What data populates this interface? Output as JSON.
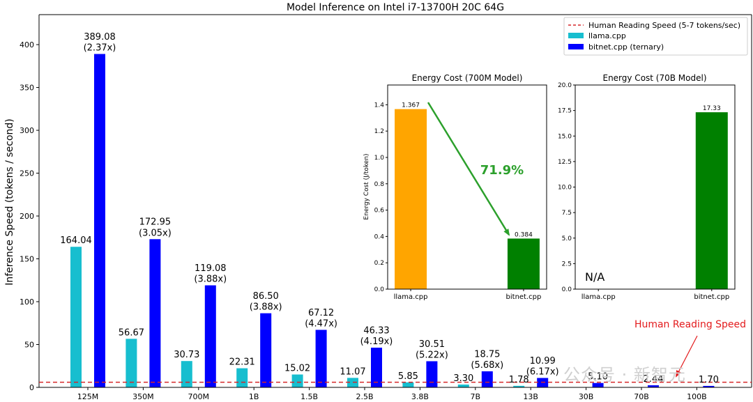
{
  "chart_data": [
    {
      "type": "bar",
      "title": "Model Inference on Intel i7-13700H 20C 64G",
      "xlabel": "",
      "ylabel": "Inference Speed (tokens / second)",
      "ylim": [
        0,
        435
      ],
      "yticks": [
        0,
        50,
        100,
        150,
        200,
        250,
        300,
        350,
        400
      ],
      "grid": false,
      "legend_position": "top-right",
      "categories": [
        "125M",
        "350M",
        "700M",
        "1B",
        "1.5B",
        "2.5B",
        "3.8B",
        "7B",
        "13B",
        "30B",
        "70B",
        "100B"
      ],
      "series": [
        {
          "name": "llama.cpp",
          "color": "#17becf",
          "values": [
            164.04,
            56.67,
            30.73,
            22.31,
            15.02,
            11.07,
            5.85,
            3.3,
            1.78,
            null,
            null,
            null
          ],
          "labels": [
            "164.04",
            "56.67",
            "30.73",
            "22.31",
            "15.02",
            "11.07",
            "5.85",
            "3.30",
            "1.78",
            "",
            "",
            ""
          ]
        },
        {
          "name": "bitnet.cpp (ternary)",
          "color": "#0000ff",
          "values": [
            389.08,
            172.95,
            119.08,
            86.5,
            67.12,
            46.33,
            30.51,
            18.75,
            10.99,
            5.1,
            2.44,
            1.7
          ],
          "labels": [
            "389.08\n(2.37x)",
            "172.95\n(3.05x)",
            "119.08\n(3.88x)",
            "86.50\n(3.88x)",
            "67.12\n(4.47x)",
            "46.33\n(4.19x)",
            "30.51\n(5.22x)",
            "18.75\n(5.68x)",
            "10.99\n(6.17x)",
            "5.10",
            "2.44",
            "1.70"
          ]
        }
      ],
      "reference_line": {
        "name": "Human Reading Speed (5-7 tokens/sec)",
        "y": 6,
        "color": "#d62728"
      },
      "annotation": {
        "text": "Human Reading Speed",
        "color": "#e31a1c"
      }
    },
    {
      "type": "bar",
      "title": "Energy Cost (700M Model)",
      "xlabel": "",
      "ylabel": "Energy Cost (J/token)",
      "ylim": [
        0,
        1.55
      ],
      "yticks": [
        0.0,
        0.2,
        0.4,
        0.6,
        0.8,
        1.0,
        1.2,
        1.4
      ],
      "tick_labels": [
        "0.0",
        "0.2",
        "0.4",
        "0.6",
        "0.8",
        "1.0",
        "1.2",
        "1.4"
      ],
      "categories": [
        "llama.cpp",
        "bitnet.cpp"
      ],
      "values": [
        1.367,
        0.384
      ],
      "labels": [
        "1.367",
        "0.384"
      ],
      "colors": [
        "#ffa500",
        "#008000"
      ],
      "annotation": {
        "text": "71.9%",
        "color": "#2ca02c"
      }
    },
    {
      "type": "bar",
      "title": "Energy Cost (70B Model)",
      "xlabel": "",
      "ylabel": "",
      "ylim": [
        0,
        20
      ],
      "yticks": [
        0,
        2.5,
        5,
        7.5,
        10,
        12.5,
        15,
        17.5,
        20
      ],
      "tick_labels": [
        "0.0",
        "2.5",
        "5.0",
        "7.5",
        "10.0",
        "12.5",
        "15.0",
        "17.5",
        "20.0"
      ],
      "categories": [
        "llama.cpp",
        "bitnet.cpp"
      ],
      "values": [
        null,
        17.33
      ],
      "labels": [
        "",
        "17.33"
      ],
      "colors": [
        "#ffa500",
        "#008000"
      ],
      "na_text": "N/A"
    }
  ],
  "watermark": "公众号 · 新智元"
}
